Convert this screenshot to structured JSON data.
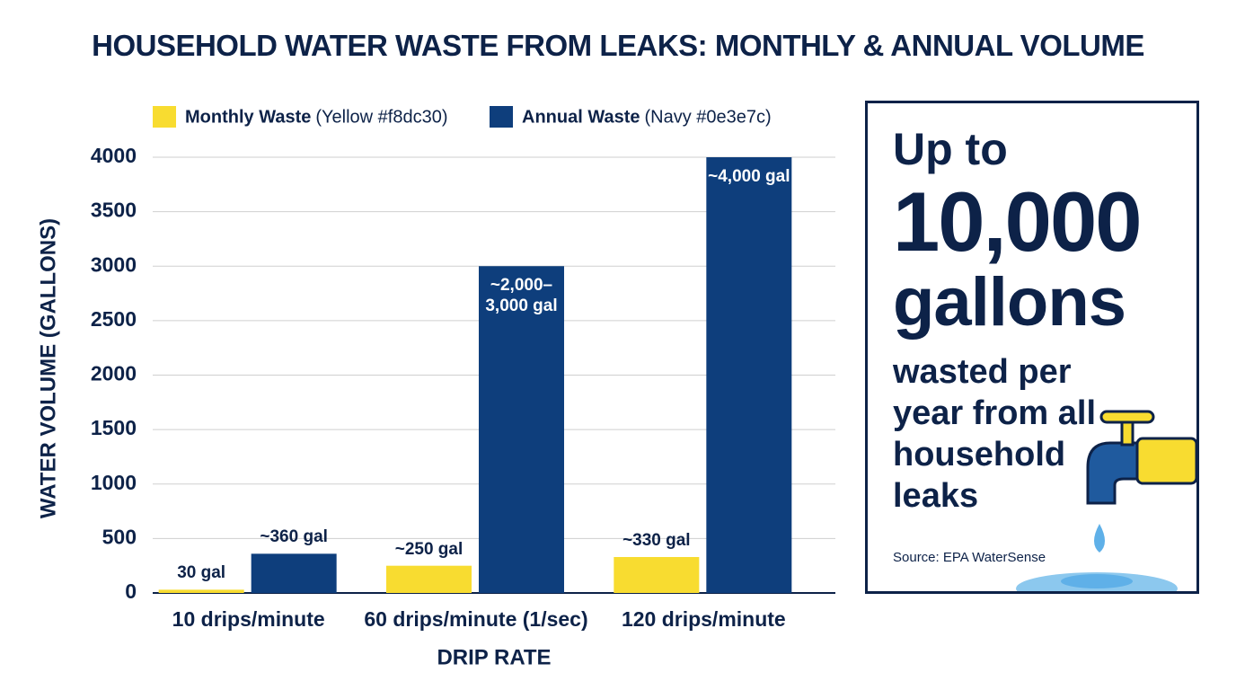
{
  "chart_data": {
    "type": "bar",
    "title": "HOUSEHOLD WATER WASTE FROM LEAKS: MONTHLY & ANNUAL VOLUME",
    "x_label": "DRIP RATE",
    "y_label": "WATER VOLUME (GALLONS)",
    "categories": [
      "10 drips/minute",
      "60 drips/minute (1/sec)",
      "120 drips/minute"
    ],
    "series": [
      {
        "name": "Monthly Waste",
        "legend_detail": "(Yellow #f8dc30)",
        "color": "#f8dc30",
        "values": [
          30,
          250,
          330
        ],
        "value_labels": [
          "30 gal",
          "~250 gal",
          "~330 gal"
        ]
      },
      {
        "name": "Annual Waste",
        "legend_detail": "(Navy #0e3e7c)",
        "color": "#0e3e7c",
        "values": [
          360,
          3000,
          4000
        ],
        "value_labels": [
          "~360 gal",
          "~2,000–3,000 gal",
          "~4,000 gal"
        ]
      }
    ],
    "ylim": [
      0,
      4000
    ],
    "yticks": [
      0,
      500,
      1000,
      1500,
      2000,
      2500,
      3000,
      3500,
      4000
    ],
    "grid": true,
    "legend": "top"
  },
  "callout": {
    "lead": "Up to",
    "number": "10,000",
    "unit": "gallons",
    "text": "wasted per year from all household leaks",
    "source": "Source: EPA WaterSense"
  }
}
